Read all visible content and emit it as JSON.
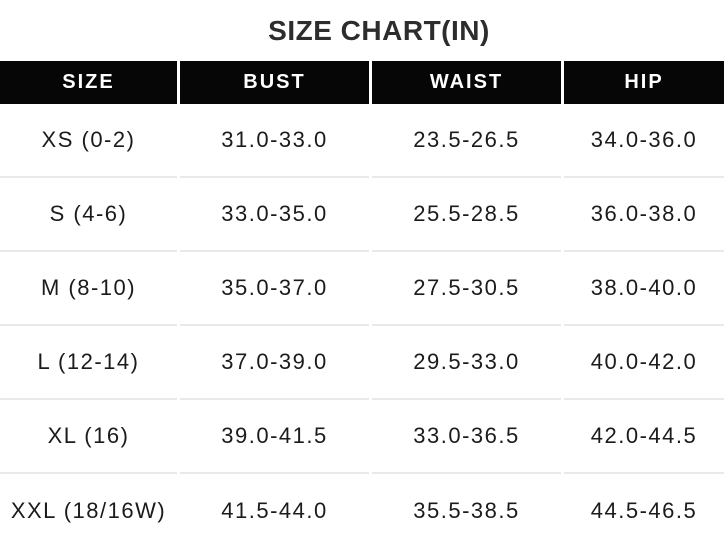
{
  "title": "SIZE CHART(IN)",
  "table": {
    "columns": [
      "SIZE",
      "BUST",
      "WAIST",
      "HIP"
    ],
    "rows": [
      [
        "XS (0-2)",
        "31.0-33.0",
        "23.5-26.5",
        "34.0-36.0"
      ],
      [
        "S (4-6)",
        "33.0-35.0",
        "25.5-28.5",
        "36.0-38.0"
      ],
      [
        "M (8-10)",
        "35.0-37.0",
        "27.5-30.5",
        "38.0-40.0"
      ],
      [
        "L (12-14)",
        "37.0-39.0",
        "29.5-33.0",
        "40.0-42.0"
      ],
      [
        "XL (16)",
        "39.0-41.5",
        "33.0-36.5",
        "42.0-44.5"
      ],
      [
        "XXL (18/16W)",
        "41.5-44.0",
        "35.5-38.5",
        "44.5-46.5"
      ]
    ]
  },
  "colors": {
    "background": "#ffffff",
    "title_text": "#2d2d2d",
    "header_bg": "#060606",
    "header_text": "#ffffff",
    "body_text": "#1b1b1b",
    "divider": "#e9e9e9"
  },
  "chart_data": {
    "type": "table",
    "title": "SIZE CHART(IN)",
    "units": "inches",
    "columns": [
      "SIZE",
      "BUST",
      "WAIST",
      "HIP"
    ],
    "rows": [
      [
        "XS (0-2)",
        "31.0-33.0",
        "23.5-26.5",
        "34.0-36.0"
      ],
      [
        "S (4-6)",
        "33.0-35.0",
        "25.5-28.5",
        "36.0-38.0"
      ],
      [
        "M (8-10)",
        "35.0-37.0",
        "27.5-30.5",
        "38.0-40.0"
      ],
      [
        "L (12-14)",
        "37.0-39.0",
        "29.5-33.0",
        "40.0-42.0"
      ],
      [
        "XL (16)",
        "39.0-41.5",
        "33.0-36.5",
        "42.0-44.5"
      ],
      [
        "XXL (18/16W)",
        "41.5-44.0",
        "35.5-38.5",
        "44.5-46.5"
      ]
    ]
  }
}
